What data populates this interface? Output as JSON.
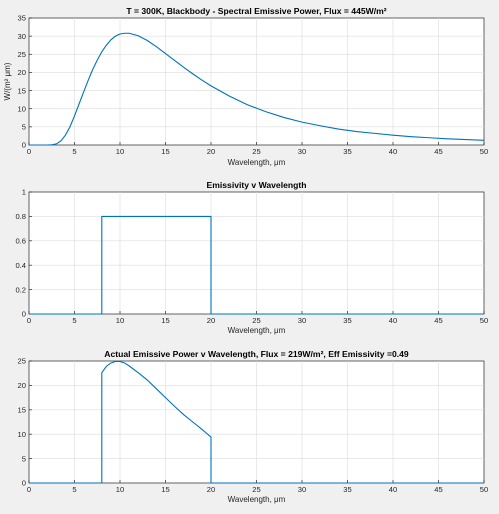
{
  "chart_data": [
    {
      "type": "line",
      "title": "T = 300K, Blackbody - Spectral Emissive Power, Flux = 445W/m²",
      "xlabel": "Wavelength, μm",
      "ylabel": "W/(m² μm)",
      "xlim": [
        0,
        50
      ],
      "ylim": [
        0,
        35
      ],
      "xticks": [
        0,
        5,
        10,
        15,
        20,
        25,
        30,
        35,
        40,
        45,
        50
      ],
      "yticks": [
        0,
        5,
        10,
        15,
        20,
        25,
        30,
        35
      ],
      "grid": true,
      "series": [
        {
          "x": [
            0,
            1,
            2,
            2.5,
            3,
            3.5,
            4,
            4.5,
            5,
            5.5,
            6,
            6.5,
            7,
            7.5,
            8,
            8.5,
            9,
            9.5,
            10,
            10.5,
            11,
            12,
            13,
            14,
            15,
            16,
            17,
            18,
            19,
            20,
            22,
            24,
            26,
            28,
            30,
            32,
            34,
            36,
            38,
            40,
            42,
            44,
            46,
            48,
            50
          ],
          "y": [
            0,
            0,
            0,
            0.04,
            0.3,
            1.1,
            2.7,
            5.0,
            8.0,
            11.3,
            14.6,
            17.8,
            20.8,
            23.4,
            25.7,
            27.5,
            29.0,
            30.0,
            30.6,
            30.8,
            30.8,
            30.1,
            28.8,
            27.1,
            25.2,
            23.3,
            21.4,
            19.6,
            17.9,
            16.3,
            13.5,
            11.1,
            9.2,
            7.6,
            6.3,
            5.3,
            4.4,
            3.7,
            3.2,
            2.7,
            2.3,
            2.0,
            1.7,
            1.5,
            1.3
          ]
        }
      ]
    },
    {
      "type": "line",
      "title": "Emissivity v Wavelength",
      "xlabel": "Wavelength, μm",
      "ylabel": "",
      "xlim": [
        0,
        50
      ],
      "ylim": [
        0,
        1
      ],
      "xticks": [
        0,
        5,
        10,
        15,
        20,
        25,
        30,
        35,
        40,
        45,
        50
      ],
      "yticks": [
        0,
        0.2,
        0.4,
        0.6,
        0.8,
        1
      ],
      "grid": true,
      "series": [
        {
          "x": [
            0,
            8,
            8,
            20,
            20,
            50
          ],
          "y": [
            0,
            0,
            0.8,
            0.8,
            0,
            0
          ]
        }
      ]
    },
    {
      "type": "line",
      "title": "Actual Emissive Power v Wavelength, Flux = 219W/m², Eff Emissivity =0.49",
      "xlabel": "Wavelength, μm",
      "ylabel": "",
      "xlim": [
        0,
        50
      ],
      "ylim": [
        0,
        25
      ],
      "xticks": [
        0,
        5,
        10,
        15,
        20,
        25,
        30,
        35,
        40,
        45,
        50
      ],
      "yticks": [
        0,
        5,
        10,
        15,
        20,
        25
      ],
      "grid": true,
      "series": [
        {
          "x": [
            0,
            8,
            8,
            8.5,
            9,
            9.5,
            10,
            10.5,
            11,
            12,
            13,
            14,
            15,
            16,
            17,
            18,
            19,
            20,
            20,
            50
          ],
          "y": [
            0,
            0,
            22.6,
            23.9,
            24.6,
            24.9,
            24.9,
            24.6,
            24.0,
            22.6,
            21.1,
            19.3,
            17.5,
            15.7,
            14.0,
            12.5,
            11.0,
            9.4,
            0,
            0
          ]
        }
      ]
    }
  ]
}
